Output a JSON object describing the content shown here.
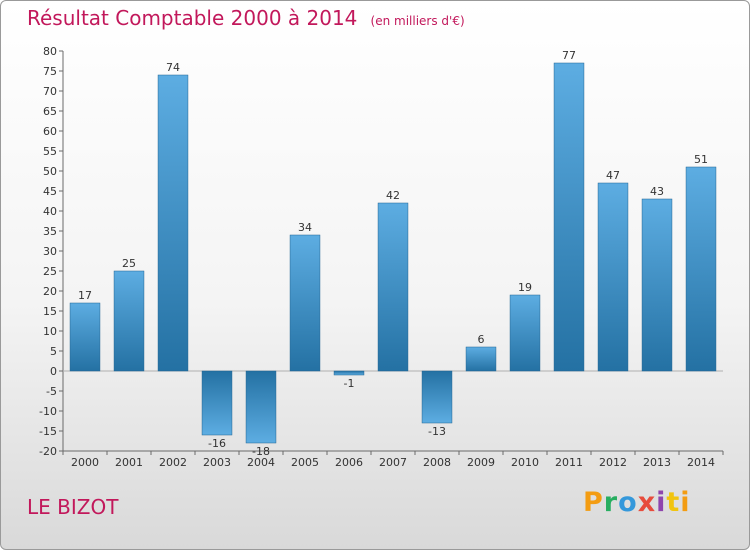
{
  "header": {
    "title": "Résultat Comptable 2000 à 2014",
    "subtitle": "(en milliers d'€)"
  },
  "footer": {
    "commune": "LE BIZOT",
    "logo": "Proxiti"
  },
  "chart_data": {
    "type": "bar",
    "title": "Résultat Comptable 2000 à 2014",
    "subtitle": "(en milliers d'€)",
    "xlabel": "",
    "ylabel": "",
    "categories": [
      "2000",
      "2001",
      "2002",
      "2003",
      "2004",
      "2005",
      "2006",
      "2007",
      "2008",
      "2009",
      "2010",
      "2011",
      "2012",
      "2013",
      "2014"
    ],
    "values": [
      17,
      25,
      74,
      -16,
      -18,
      34,
      -1,
      42,
      -13,
      6,
      19,
      77,
      47,
      43,
      51
    ],
    "ylim": [
      -20,
      80
    ],
    "ytick_step": 5,
    "grid": false,
    "legend": "none",
    "colors": {
      "bar_light": "#5dade2",
      "bar_dark": "#2471a3",
      "axis": "#6a6a6a",
      "title": "#c2185b"
    }
  }
}
